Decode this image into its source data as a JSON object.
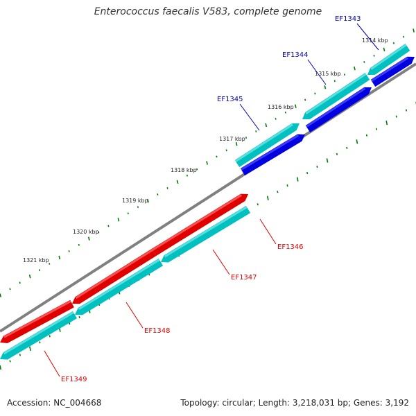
{
  "title": "Enterococcus faecalis V583, complete genome",
  "footer": {
    "accession": "Accession: NC_004668",
    "summary": "Topology: circular; Length: 3,218,031 bp; Genes: 3,192"
  },
  "colors": {
    "backbone": "#808080",
    "forward_gene": "#00c0c0",
    "forward_gene_dark": "#0000e0",
    "reverse_gene": "#e00000",
    "ticks": "#007a00",
    "label_forward": "#0000b0",
    "label_reverse": "#e00000"
  },
  "ruler": [
    {
      "label": "1314 kbp"
    },
    {
      "label": "1315 kbp"
    },
    {
      "label": "1316 kbp"
    },
    {
      "label": "1317 kbp"
    },
    {
      "label": "1318 kbp"
    },
    {
      "label": "1319 kbp"
    },
    {
      "label": "1320 kbp"
    },
    {
      "label": "1321 kbp"
    }
  ],
  "genes": [
    {
      "name": "EF1343",
      "strand": "forward"
    },
    {
      "name": "EF1344",
      "strand": "forward"
    },
    {
      "name": "EF1345",
      "strand": "forward"
    },
    {
      "name": "EF1346",
      "strand": "reverse"
    },
    {
      "name": "EF1347",
      "strand": "reverse"
    },
    {
      "name": "EF1348",
      "strand": "reverse"
    },
    {
      "name": "EF1349",
      "strand": "reverse"
    }
  ]
}
